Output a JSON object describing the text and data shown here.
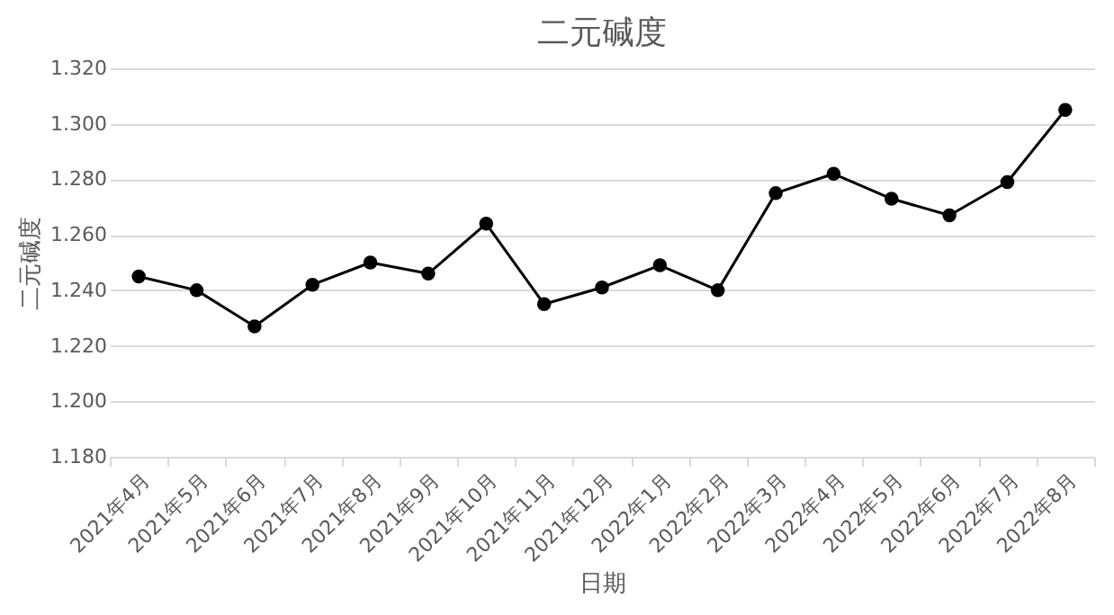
{
  "chart_data": {
    "type": "line",
    "title": "二元碱度",
    "xlabel": "日期",
    "ylabel": "二元碱度",
    "categories": [
      "2021年4月",
      "2021年5月",
      "2021年6月",
      "2021年7月",
      "2021年8月",
      "2021年9月",
      "2021年10月",
      "2021年11月",
      "2021年12月",
      "2022年1月",
      "2022年2月",
      "2022年3月",
      "2022年4月",
      "2022年5月",
      "2022年6月",
      "2022年7月",
      "2022年8月"
    ],
    "series": [
      {
        "color": "#000000",
        "values": [
          1.245,
          1.24,
          1.227,
          1.242,
          1.25,
          1.246,
          1.264,
          1.235,
          1.241,
          1.249,
          1.24,
          1.275,
          1.282,
          1.273,
          1.267,
          1.279,
          1.305
        ]
      }
    ],
    "ylim": [
      1.18,
      1.32
    ],
    "yticks": [
      {
        "value": 1.18,
        "label": "1.180"
      },
      {
        "value": 1.2,
        "label": "1.200"
      },
      {
        "value": 1.22,
        "label": "1.220"
      },
      {
        "value": 1.24,
        "label": "1.240"
      },
      {
        "value": 1.26,
        "label": "1.260"
      },
      {
        "value": 1.28,
        "label": "1.280"
      },
      {
        "value": 1.3,
        "label": "1.300"
      },
      {
        "value": 1.32,
        "label": "1.320"
      }
    ],
    "grid": "y",
    "marker": "circle",
    "line_style": "solid"
  }
}
